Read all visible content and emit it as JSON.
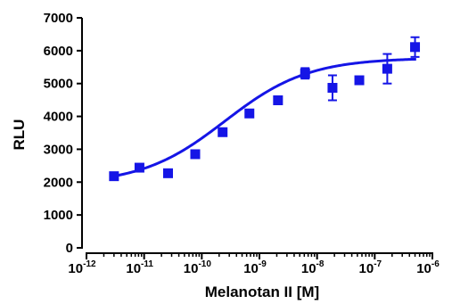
{
  "chart_data": {
    "type": "scatter",
    "title": "",
    "xlabel": "Melanotan II [M]",
    "ylabel": "RLU",
    "x_scale": "log",
    "xlim": [
      1e-12,
      1e-06
    ],
    "ylim": [
      0,
      7000
    ],
    "grid": false,
    "legend": "none",
    "x_tick_labels": [
      {
        "base": "10",
        "exp": "-12"
      },
      {
        "base": "10",
        "exp": "-11"
      },
      {
        "base": "10",
        "exp": "-10"
      },
      {
        "base": "10",
        "exp": "-9"
      },
      {
        "base": "10",
        "exp": "-8"
      },
      {
        "base": "10",
        "exp": "-7"
      },
      {
        "base": "10",
        "exp": "-6"
      }
    ],
    "y_ticks": [
      0,
      1000,
      2000,
      3000,
      4000,
      5000,
      6000,
      7000
    ],
    "series": [
      {
        "marker": "square",
        "color": "#1515e6",
        "x": [
          3e-12,
          8.3e-12,
          2.6e-11,
          7.7e-11,
          2.3e-10,
          6.7e-10,
          2.1e-09,
          6.2e-09,
          1.85e-08,
          5.4e-08,
          1.65e-07,
          5e-07
        ],
        "y": [
          2180,
          2440,
          2270,
          2850,
          3520,
          4090,
          4490,
          5310,
          4870,
          5100,
          5450,
          6110
        ],
        "error": [
          0,
          0,
          80,
          0,
          0,
          70,
          110,
          160,
          380,
          0,
          450,
          300
        ]
      }
    ],
    "fit_curve": {
      "type": "sigmoid",
      "color": "#1515e6",
      "bottom": 1930,
      "top": 5780,
      "log_ec50": -9.6,
      "hill_slope": 0.6
    }
  }
}
